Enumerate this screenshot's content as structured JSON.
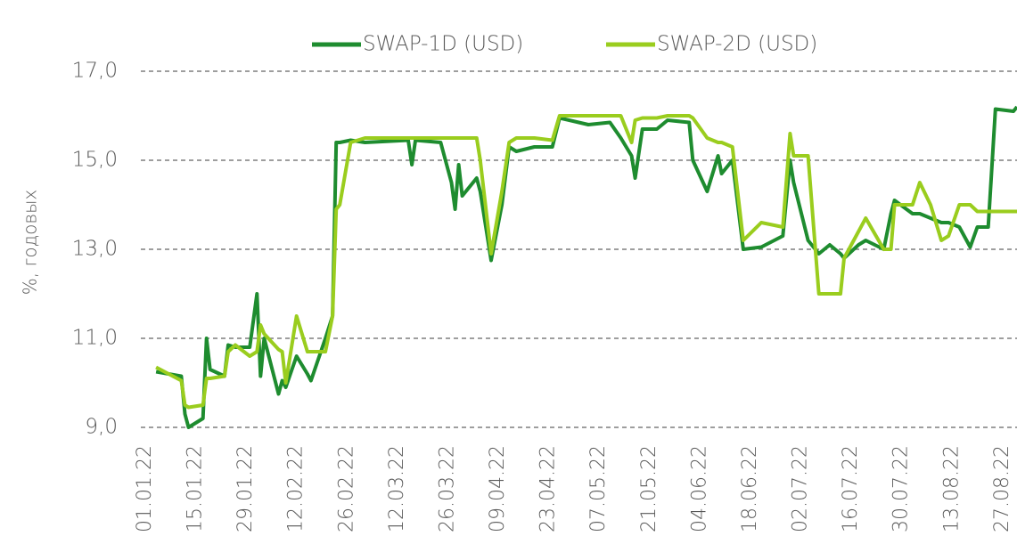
{
  "chart_data": {
    "type": "line",
    "ylabel": "%, годовых",
    "x": [
      "04.01.22",
      "11.01.22",
      "12.01.22",
      "13.01.22",
      "17.01.22",
      "18.01.22",
      "19.01.22",
      "23.01.22",
      "24.01.22",
      "26.01.22",
      "30.01.22",
      "01.02.22",
      "02.02.22",
      "03.02.22",
      "07.02.22",
      "08.02.22",
      "09.02.22",
      "12.02.22",
      "15.02.22",
      "16.02.22",
      "20.02.22",
      "22.02.22",
      "23.02.22",
      "24.02.22",
      "27.02.22",
      "03.03.22",
      "15.03.22",
      "16.03.22",
      "17.03.22",
      "24.03.22",
      "27.03.22",
      "28.03.22",
      "29.03.22",
      "30.03.22",
      "03.04.22",
      "04.04.22",
      "07.04.22",
      "10.04.22",
      "12.04.22",
      "14.04.22",
      "19.04.22",
      "24.04.22",
      "26.04.22",
      "04.05.22",
      "10.05.22",
      "13.05.22",
      "16.05.22",
      "17.05.22",
      "19.05.22",
      "23.05.22",
      "26.05.22",
      "01.06.22",
      "02.06.22",
      "06.06.22",
      "09.06.22",
      "10.06.22",
      "13.06.22",
      "16.06.22",
      "21.06.22",
      "27.06.22",
      "29.06.22",
      "30.06.22",
      "04.07.22",
      "07.07.22",
      "10.07.22",
      "13.07.22",
      "14.07.22",
      "18.07.22",
      "20.07.22",
      "25.07.22",
      "27.07.22",
      "28.07.22",
      "02.08.22",
      "04.08.22",
      "07.08.22",
      "10.08.22",
      "12.08.22",
      "15.08.22",
      "18.08.22",
      "20.08.22",
      "23.08.22",
      "25.08.22",
      "30.08.22",
      "31.08.22"
    ],
    "series": [
      {
        "name": "SWAP-1D (USD)",
        "color": "#1e8c2f",
        "values": [
          10.25,
          10.15,
          9.3,
          9.0,
          9.2,
          11.0,
          10.3,
          10.15,
          10.85,
          10.8,
          10.8,
          12.0,
          10.15,
          11.0,
          9.75,
          10.05,
          9.9,
          10.6,
          10.2,
          10.05,
          11.0,
          11.5,
          15.4,
          15.4,
          15.45,
          15.4,
          15.45,
          14.9,
          15.45,
          15.4,
          14.5,
          13.9,
          14.9,
          14.2,
          14.6,
          14.3,
          12.75,
          14.0,
          15.3,
          15.2,
          15.3,
          15.3,
          15.95,
          15.8,
          15.85,
          15.5,
          15.1,
          14.6,
          15.7,
          15.7,
          15.9,
          15.85,
          15.0,
          14.3,
          15.1,
          14.7,
          15.0,
          13.0,
          13.05,
          13.3,
          15.0,
          14.5,
          13.2,
          12.9,
          13.1,
          12.9,
          12.8,
          13.1,
          13.2,
          13.0,
          13.8,
          14.1,
          13.8,
          13.8,
          13.7,
          13.6,
          13.6,
          13.5,
          13.05,
          13.5,
          13.5,
          16.15,
          16.1,
          16.2
        ]
      },
      {
        "name": "SWAP-2D (USD)",
        "color": "#9acd1e",
        "values": [
          10.35,
          10.05,
          9.5,
          9.45,
          9.5,
          10.1,
          10.1,
          10.15,
          10.7,
          10.85,
          10.6,
          10.7,
          11.3,
          11.1,
          10.75,
          10.7,
          10.0,
          11.5,
          10.7,
          10.7,
          10.7,
          11.5,
          13.9,
          14.0,
          15.4,
          15.5,
          15.5,
          15.5,
          15.5,
          15.5,
          15.5,
          15.5,
          15.5,
          15.5,
          15.5,
          15.0,
          12.9,
          14.3,
          15.4,
          15.5,
          15.5,
          15.45,
          16.0,
          16.0,
          16.0,
          16.0,
          15.4,
          15.9,
          15.95,
          15.95,
          16.0,
          16.0,
          15.95,
          15.5,
          15.4,
          15.4,
          15.3,
          13.2,
          13.6,
          13.5,
          15.6,
          15.1,
          15.1,
          12.0,
          12.0,
          12.0,
          12.8,
          13.4,
          13.7,
          13.0,
          13.0,
          14.0,
          14.0,
          14.5,
          14.0,
          13.2,
          13.3,
          14.0,
          14.0,
          13.85,
          13.85,
          13.85,
          13.85,
          13.85
        ]
      }
    ],
    "xlim": [
      "01.01.22",
      "31.08.22"
    ],
    "xticks": [
      "01.01.22",
      "15.01.22",
      "29.01.22",
      "12.02.22",
      "26.02.22",
      "12.03.22",
      "26.03.22",
      "09.04.22",
      "23.04.22",
      "07.05.22",
      "21.05.22",
      "04.06.22",
      "18.06.22",
      "02.07.22",
      "16.07.22",
      "30.07.22",
      "13.08.22",
      "27.08.22"
    ],
    "ylim": [
      9,
      17
    ],
    "yticks": [
      {
        "value": 9,
        "label": "9,0"
      },
      {
        "value": 11,
        "label": "11,0"
      },
      {
        "value": 13,
        "label": "13,0"
      },
      {
        "value": 15,
        "label": "15,0"
      },
      {
        "value": 17,
        "label": "17,0"
      }
    ],
    "grid": true,
    "legend": "top"
  }
}
